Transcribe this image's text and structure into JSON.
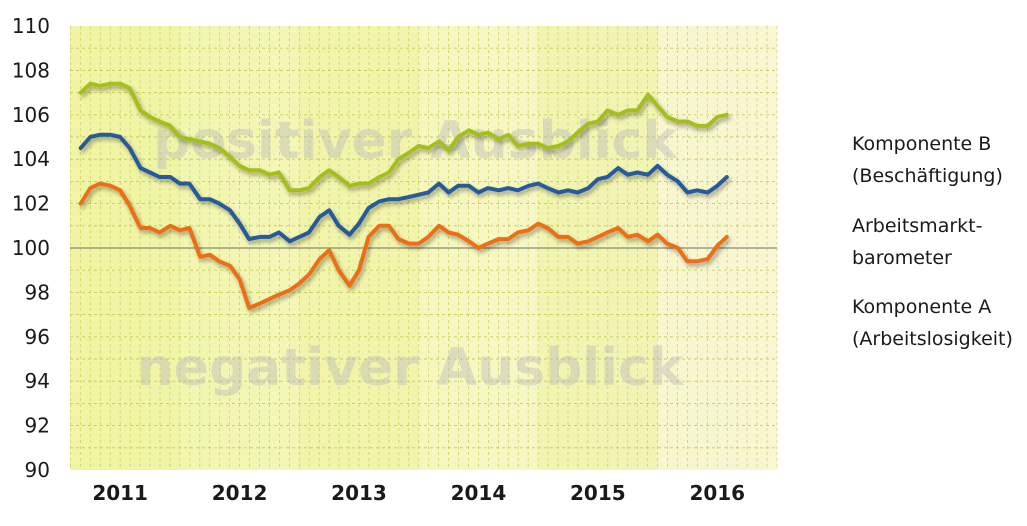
{
  "chart_data": {
    "type": "line",
    "title": "",
    "xlabel": "",
    "ylabel": "",
    "ylim": [
      90,
      110
    ],
    "yticks": [
      90,
      92,
      94,
      96,
      98,
      100,
      102,
      104,
      106,
      108,
      110
    ],
    "xlim": [
      2010.58,
      2016.5
    ],
    "xtick_labels": [
      "2011",
      "2012",
      "2013",
      "2014",
      "2015",
      "2016"
    ],
    "xtick_positions": [
      2011.0,
      2012.0,
      2013.0,
      2014.0,
      2015.0,
      2016.0
    ],
    "reference_line": 100,
    "grid": true,
    "legend_position": "right",
    "watermarks": [
      "positiver Ausblick",
      "negativer Ausblick"
    ],
    "x": [
      2010.67,
      2010.75,
      2010.83,
      2010.92,
      2011.0,
      2011.08,
      2011.17,
      2011.25,
      2011.33,
      2011.42,
      2011.5,
      2011.58,
      2011.67,
      2011.75,
      2011.83,
      2011.92,
      2012.0,
      2012.08,
      2012.17,
      2012.25,
      2012.33,
      2012.42,
      2012.5,
      2012.58,
      2012.67,
      2012.75,
      2012.83,
      2012.92,
      2013.0,
      2013.08,
      2013.17,
      2013.25,
      2013.33,
      2013.42,
      2013.5,
      2013.58,
      2013.67,
      2013.75,
      2013.83,
      2013.92,
      2014.0,
      2014.08,
      2014.17,
      2014.25,
      2014.33,
      2014.42,
      2014.5,
      2014.58,
      2014.67,
      2014.75,
      2014.83,
      2014.92,
      2015.0,
      2015.08,
      2015.17,
      2015.25,
      2015.33,
      2015.42,
      2015.5,
      2015.58,
      2015.67,
      2015.75,
      2015.83,
      2015.92,
      2016.0,
      2016.08
    ],
    "series": [
      {
        "name": "Komponente B (Beschäftigung)",
        "color": "#a3bf1c",
        "values": [
          107.0,
          107.4,
          107.3,
          107.4,
          107.4,
          107.2,
          106.2,
          105.9,
          105.7,
          105.5,
          105.0,
          104.9,
          104.8,
          104.7,
          104.5,
          104.1,
          103.7,
          103.5,
          103.5,
          103.3,
          103.4,
          102.6,
          102.6,
          102.7,
          103.2,
          103.5,
          103.2,
          102.8,
          102.9,
          102.9,
          103.2,
          103.4,
          104.0,
          104.3,
          104.6,
          104.5,
          104.8,
          104.4,
          105.0,
          105.3,
          105.1,
          105.2,
          104.9,
          105.1,
          104.6,
          104.7,
          104.7,
          104.5,
          104.6,
          104.8,
          105.2,
          105.6,
          105.7,
          106.2,
          106.0,
          106.2,
          106.2,
          106.9,
          106.4,
          105.9,
          105.7,
          105.7,
          105.5,
          105.5,
          105.9,
          106.0
        ]
      },
      {
        "name": "Arbeitsmarktbarometer",
        "color": "#255a9b",
        "values": [
          104.5,
          105.0,
          105.1,
          105.1,
          105.0,
          104.5,
          103.6,
          103.4,
          103.2,
          103.2,
          102.9,
          102.9,
          102.2,
          102.2,
          102.0,
          101.7,
          101.1,
          100.4,
          100.5,
          100.5,
          100.7,
          100.3,
          100.5,
          100.7,
          101.4,
          101.7,
          101.0,
          100.6,
          101.1,
          101.8,
          102.1,
          102.2,
          102.2,
          102.3,
          102.4,
          102.5,
          102.9,
          102.5,
          102.8,
          102.8,
          102.5,
          102.7,
          102.6,
          102.7,
          102.6,
          102.8,
          102.9,
          102.7,
          102.5,
          102.6,
          102.5,
          102.7,
          103.1,
          103.2,
          103.6,
          103.3,
          103.4,
          103.3,
          103.7,
          103.3,
          103.0,
          102.5,
          102.6,
          102.5,
          102.8,
          103.2
        ]
      },
      {
        "name": "Komponente A (Arbeitslosigkeit)",
        "color": "#ec6e15",
        "values": [
          102.0,
          102.7,
          102.9,
          102.8,
          102.6,
          101.9,
          100.9,
          100.9,
          100.7,
          101.0,
          100.8,
          100.9,
          99.6,
          99.7,
          99.4,
          99.2,
          98.6,
          97.3,
          97.5,
          97.7,
          97.9,
          98.1,
          98.4,
          98.8,
          99.5,
          99.9,
          99.0,
          98.3,
          99.0,
          100.5,
          101.0,
          101.0,
          100.4,
          100.2,
          100.2,
          100.5,
          101.0,
          100.7,
          100.6,
          100.3,
          100.0,
          100.2,
          100.4,
          100.4,
          100.7,
          100.8,
          101.1,
          100.9,
          100.5,
          100.5,
          100.2,
          100.3,
          100.5,
          100.7,
          100.9,
          100.5,
          100.6,
          100.3,
          100.6,
          100.2,
          100.0,
          99.4,
          99.4,
          99.5,
          100.1,
          100.5
        ]
      }
    ],
    "legend": [
      {
        "line1": "Komponente B",
        "line2": "(Beschäftigung)",
        "color": "#a3bf1c"
      },
      {
        "line1": "Arbeitsmarkt-",
        "line2": "barometer",
        "color": "#255a9b"
      },
      {
        "line1": "Komponente A",
        "line2": "(Arbeitslosigkeit)",
        "color": "#ec6e15"
      }
    ]
  }
}
